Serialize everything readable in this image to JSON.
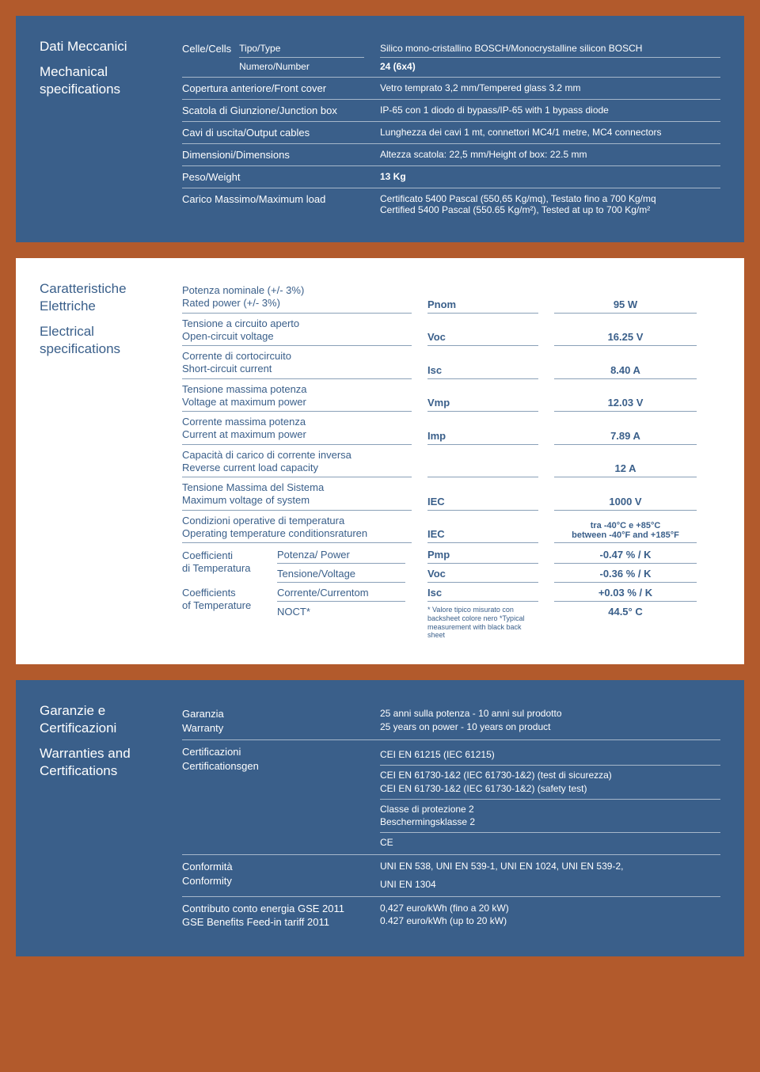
{
  "colors": {
    "page_bg": "#b25a2c",
    "panel_blue": "#3a5f8a",
    "panel_white": "#ffffff",
    "text_light": "#ffffff",
    "text_blue": "#3a5f8a",
    "divider_light": "rgba(255,255,255,0.55)",
    "divider_blue": "#8aa0b8"
  },
  "mechanical": {
    "title_it": "Dati Meccanici",
    "title_en": "Mechanical specifications",
    "rows": {
      "cells_label": "Celle/Cells",
      "type_label": "Tipo/Type",
      "type_value": "Silico mono-cristallino BOSCH/Monocrystalline silicon BOSCH",
      "number_label": "Numero/Number",
      "number_value": "24 (6x4)",
      "front_label": "Copertura anteriore/Front cover",
      "front_value": "Vetro temprato 3,2 mm/Tempered glass 3.2 mm",
      "jbox_label": "Scatola di Giunzione/Junction box",
      "jbox_value": "IP-65 con 1 diodo di bypass/IP-65 with 1 bypass diode",
      "cables_label": "Cavi di uscita/Output cables",
      "cables_value": "Lunghezza dei cavi 1 mt, connettori MC4/1 metre, MC4 connectors",
      "dim_label": "Dimensioni/Dimensions",
      "dim_value": "Altezza scatola: 22,5 mm/Height of box: 22.5 mm",
      "weight_label": "Peso/Weight",
      "weight_value": "13 Kg",
      "load_label": "Carico Massimo/Maximum load",
      "load_value_1": "Certificato 5400 Pascal (550,65 Kg/mq), Testato fino a 700 Kg/mq",
      "load_value_2": "Certified 5400 Pascal (550.65 Kg/m²), Tested at up to 700 Kg/m²"
    }
  },
  "electrical": {
    "title_it": "Caratteristiche Elettriche",
    "title_en": "Electrical specifications",
    "rows": [
      {
        "it": "Potenza nominale (+/- 3%)",
        "en": "Rated power (+/- 3%)",
        "sym": "Pnom",
        "val": "95 W"
      },
      {
        "it": "Tensione a circuito aperto",
        "en": "Open-circuit voltage",
        "sym": "Voc",
        "val": "16.25 V"
      },
      {
        "it": "Corrente di cortocircuito",
        "en": "Short-circuit current",
        "sym": "Isc",
        "val": "8.40 A"
      },
      {
        "it": "Tensione massima potenza",
        "en": "Voltage at maximum power",
        "sym": "Vmp",
        "val": "12.03 V"
      },
      {
        "it": "Corrente massima potenza",
        "en": "Current at maximum power",
        "sym": "Imp",
        "val": "7.89 A"
      },
      {
        "it": "Capacità di carico di corrente inversa",
        "en": "Reverse current load capacity",
        "sym": "",
        "val": "12 A"
      },
      {
        "it": "Tensione Massima del Sistema",
        "en": "Maximum voltage of system",
        "sym": "IEC",
        "val": "1000 V"
      },
      {
        "it": "Condizioni operative di temperatura",
        "en": "Operating temperature conditionsraturen",
        "sym": "IEC",
        "val": "tra -40°C e +85°C\nbetween -40°F and +185°F"
      }
    ],
    "coef": {
      "group1_it": "Coefficienti",
      "group1_it2": "di Temperatura",
      "group2_en": "Coefficients",
      "group2_en2": "of Temperature",
      "items": [
        {
          "param": "Potenza/ Power",
          "sym": "Pmp",
          "val": "-0.47 % / K"
        },
        {
          "param": "Tensione/Voltage",
          "sym": "Voc",
          "val": "-0.36 % / K"
        },
        {
          "param": "Corrente/Currentom",
          "sym": "Isc",
          "val": "+0.03 % / K"
        },
        {
          "param": "NOCT*",
          "sym": "* Valore tipico misurato con backsheet colore nero *Typical measurement with black back sheet",
          "val": "44.5° C"
        }
      ]
    }
  },
  "warranty": {
    "title_it": "Garanzie e Certificazioni",
    "title_en": "Warranties and Certifications",
    "rows": {
      "war_label_it": "Garanzia",
      "war_label_en": "Warranty",
      "war_value_it": "25 anni sulla potenza - 10 anni sul prodotto",
      "war_value_en": "25 years on power - 10 years on product",
      "cert_label_it": "Certificazioni",
      "cert_label_en": "Certificationsgen",
      "cert_values": [
        "CEI EN 61215 (IEC 61215)",
        "CEI EN 61730-1&2 (IEC 61730-1&2) (test di sicurezza)\nCEI EN 61730-1&2 (IEC 61730-1&2) (safety test)",
        "Classe di protezione 2\nBeschermingsklasse 2",
        "CE"
      ],
      "conf_label_it": "Conformità",
      "conf_label_en": "Conformity",
      "conf_value_1": "UNI EN 538, UNI EN 539-1, UNI EN 1024, UNI EN 539-2,",
      "conf_value_2": "UNI EN 1304",
      "gse_label_it": "Contributo conto energia GSE 2011",
      "gse_label_en": "GSE Benefits Feed-in tariff 2011",
      "gse_value_it": "0,427 euro/kWh (fino a 20 kW)",
      "gse_value_en": "0.427 euro/kWh (up to 20 kW)"
    }
  }
}
